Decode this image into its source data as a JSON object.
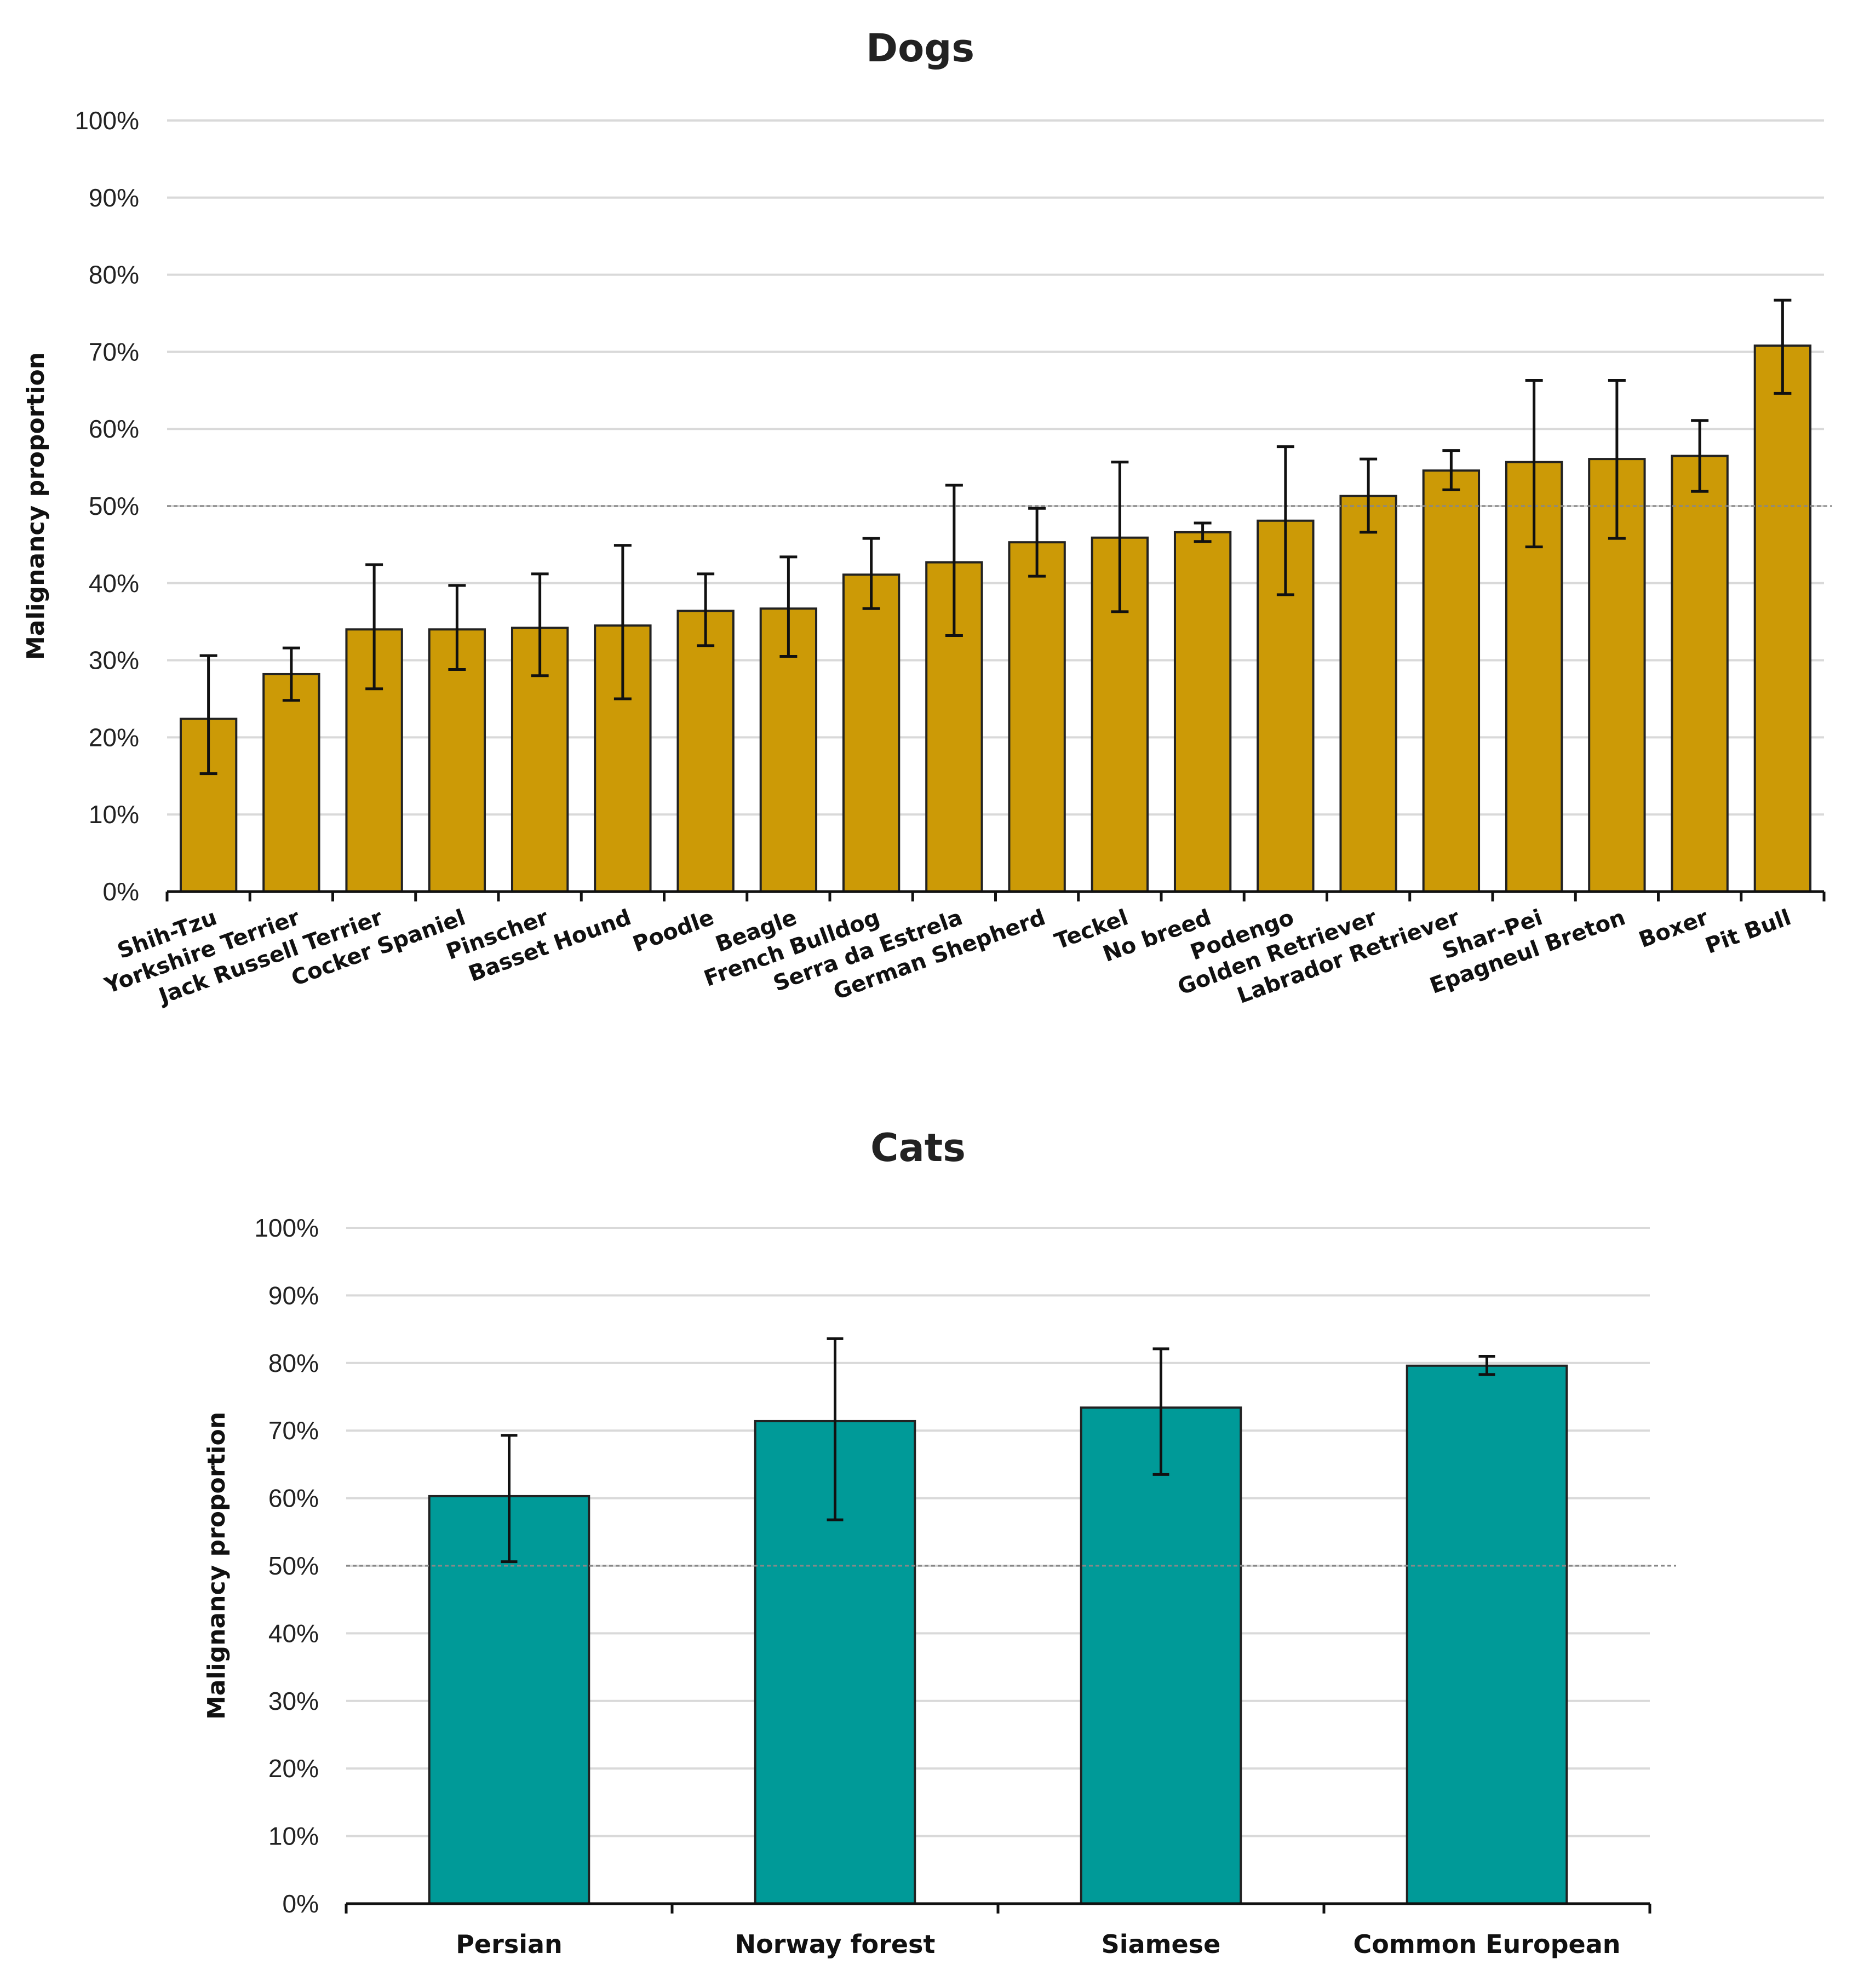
{
  "chart_data": [
    {
      "type": "bar",
      "title": "Dogs",
      "xlabel": "",
      "ylabel": "Malignancy proportion",
      "ylim": [
        0,
        100
      ],
      "y_ticks": [
        "0%",
        "10%",
        "20%",
        "30%",
        "40%",
        "50%",
        "60%",
        "70%",
        "80%",
        "90%",
        "100%"
      ],
      "grid": true,
      "reference_line": 50,
      "bar_color": "#CC9A06",
      "categories": [
        "Shih-Tzu",
        "Yorkshire Terrier",
        "Jack Russell Terrier",
        "Cocker Spaniel",
        "Pinscher",
        "Basset Hound",
        "Poodle",
        "Beagle",
        "French Bulldog",
        "Serra da Estrela",
        "German Shepherd",
        "Teckel",
        "No breed",
        "Podengo",
        "Golden Retriever",
        "Labrador Retriever",
        "Shar-Pei",
        "Epagneul Breton",
        "Boxer",
        "Pit Bull"
      ],
      "values": [
        22.4,
        28.2,
        34.0,
        34.0,
        34.2,
        34.5,
        36.4,
        36.7,
        41.1,
        42.7,
        45.3,
        45.9,
        46.6,
        48.1,
        51.3,
        54.6,
        55.7,
        56.1,
        56.5,
        70.8
      ],
      "error_low": [
        15.3,
        24.8,
        26.3,
        28.8,
        28.0,
        25.0,
        31.9,
        30.5,
        36.7,
        33.2,
        40.9,
        36.3,
        45.4,
        38.5,
        46.6,
        52.1,
        44.7,
        45.8,
        51.9,
        64.6
      ],
      "error_high": [
        30.6,
        31.6,
        42.4,
        39.7,
        41.2,
        44.9,
        41.2,
        43.4,
        45.8,
        52.7,
        49.7,
        55.7,
        47.8,
        57.7,
        56.1,
        57.2,
        66.3,
        66.3,
        61.1,
        76.7
      ]
    },
    {
      "type": "bar",
      "title": "Cats",
      "xlabel": "",
      "ylabel": "Malignancy proportion",
      "ylim": [
        0,
        100
      ],
      "y_ticks": [
        "0%",
        "10%",
        "20%",
        "30%",
        "40%",
        "50%",
        "60%",
        "70%",
        "80%",
        "90%",
        "100%"
      ],
      "grid": true,
      "reference_line": 50,
      "bar_color": "#009A98",
      "categories": [
        "Persian",
        "Norway forest",
        "Siamese",
        "Common European"
      ],
      "values": [
        60.3,
        71.4,
        73.4,
        79.6
      ],
      "error_low": [
        50.6,
        56.8,
        63.5,
        78.3
      ],
      "error_high": [
        69.3,
        83.6,
        82.1,
        81.0
      ]
    }
  ]
}
